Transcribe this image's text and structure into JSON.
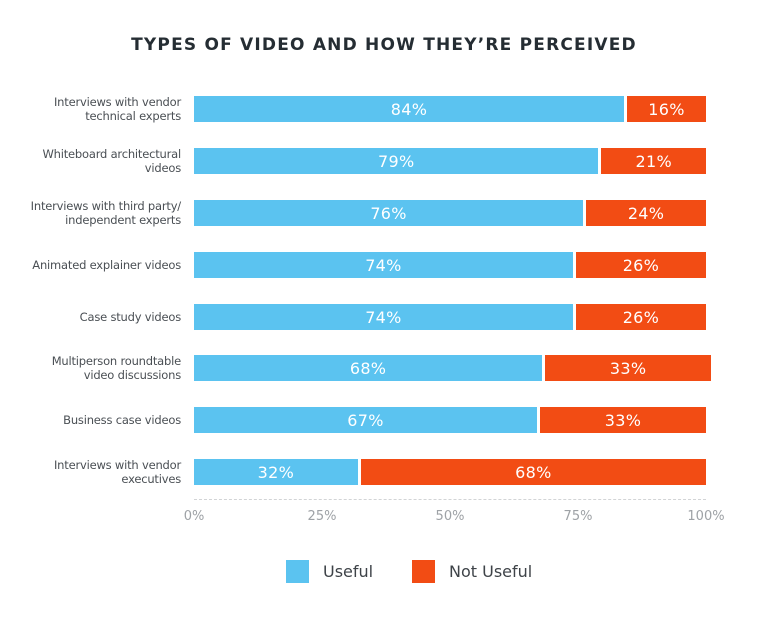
{
  "title": "TYPES OF VIDEO AND HOW THEY’RE PERCEIVED",
  "colors": {
    "useful": "#5bc3f0",
    "not_useful": "#f24c14",
    "title": "#252d33"
  },
  "legend": [
    {
      "label": "Useful",
      "color": "#5bc3f0"
    },
    {
      "label": "Not Useful",
      "color": "#f24c14"
    }
  ],
  "x_ticks": [
    "0%",
    "25%",
    "50%",
    "75%",
    "100%"
  ],
  "rows": [
    {
      "label": "Interviews with vendor\ntechnical experts",
      "useful": 84,
      "not_useful": 16,
      "useful_label": "84%",
      "not_useful_label": "16%"
    },
    {
      "label": "Whiteboard architectural\nvideos",
      "useful": 79,
      "not_useful": 21,
      "useful_label": "79%",
      "not_useful_label": "21%"
    },
    {
      "label": "Interviews with third party/\nindependent experts",
      "useful": 76,
      "not_useful": 24,
      "useful_label": "76%",
      "not_useful_label": "24%"
    },
    {
      "label": "Animated explainer videos",
      "useful": 74,
      "not_useful": 26,
      "useful_label": "74%",
      "not_useful_label": "26%"
    },
    {
      "label": "Case study videos",
      "useful": 74,
      "not_useful": 26,
      "useful_label": "74%",
      "not_useful_label": "26%"
    },
    {
      "label": "Multiperson roundtable\nvideo discussions",
      "useful": 68,
      "not_useful": 33,
      "useful_label": "68%",
      "not_useful_label": "33%"
    },
    {
      "label": "Business case videos",
      "useful": 67,
      "not_useful": 33,
      "useful_label": "67%",
      "not_useful_label": "33%"
    },
    {
      "label": "Interviews with vendor\nexecutives",
      "useful": 32,
      "not_useful": 68,
      "useful_label": "32%",
      "not_useful_label": "68%"
    }
  ],
  "chart_data": {
    "type": "bar",
    "orientation": "horizontal",
    "stacked": true,
    "title": "TYPES OF VIDEO AND HOW THEY’RE PERCEIVED",
    "categories": [
      "Interviews with vendor technical experts",
      "Whiteboard architectural videos",
      "Interviews with third party/ independent experts",
      "Animated explainer videos",
      "Case study videos",
      "Multiperson roundtable video discussions",
      "Business case videos",
      "Interviews with vendor executives"
    ],
    "series": [
      {
        "name": "Useful",
        "color": "#5bc3f0",
        "values": [
          84,
          79,
          76,
          74,
          74,
          68,
          67,
          32
        ]
      },
      {
        "name": "Not Useful",
        "color": "#f24c14",
        "values": [
          16,
          21,
          24,
          26,
          26,
          33,
          33,
          68
        ]
      }
    ],
    "xlabel": "",
    "ylabel": "",
    "xlim": [
      0,
      100
    ],
    "x_ticks": [
      "0%",
      "25%",
      "50%",
      "75%",
      "100%"
    ],
    "grid": false,
    "data_labels": true,
    "legend_position": "bottom"
  }
}
